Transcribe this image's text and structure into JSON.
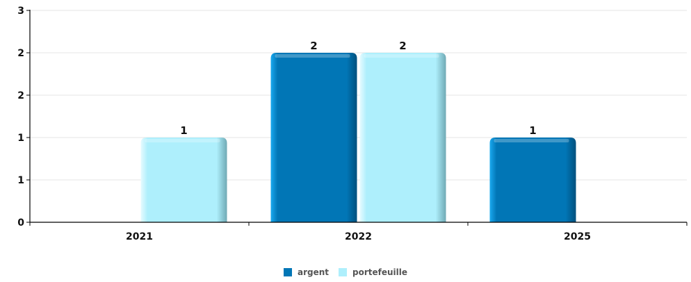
{
  "chart_data": {
    "type": "bar",
    "categories": [
      "2021",
      "2022",
      "2025"
    ],
    "series": [
      {
        "name": "argent",
        "color": "#0176b6",
        "values": [
          null,
          2,
          1
        ],
        "labels": [
          "",
          "2",
          "1"
        ]
      },
      {
        "name": "portefeuille",
        "color": "#aeeffc",
        "values": [
          1,
          2,
          null
        ],
        "labels": [
          "1",
          "2",
          ""
        ]
      }
    ],
    "y_ticks": [
      "0",
      "1",
      "1",
      "2",
      "2",
      "3"
    ],
    "ylim": [
      0,
      2.5
    ],
    "grid": true,
    "legend_position": "bottom-center"
  }
}
